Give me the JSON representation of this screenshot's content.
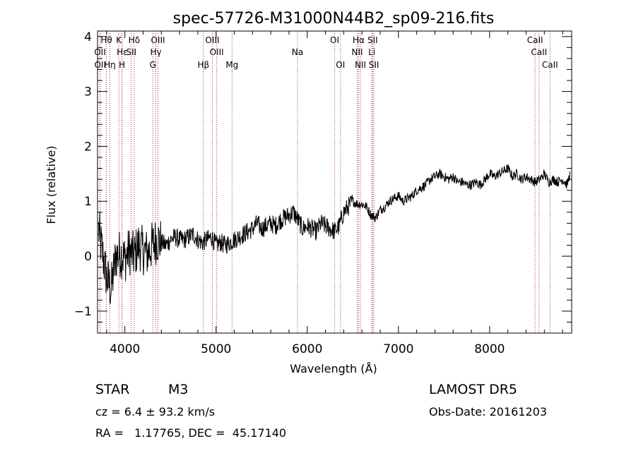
{
  "chart_data": {
    "type": "line",
    "title": "spec-57726-M31000N44B2_sp09-216.fits",
    "xlabel": "Wavelength (Å)",
    "ylabel": "Flux (relative)",
    "xlim": [
      3700,
      8900
    ],
    "ylim": [
      -1.4,
      4.1
    ],
    "x_ticks": [
      4000,
      5000,
      6000,
      7000,
      8000
    ],
    "y_ticks": [
      -1,
      0,
      1,
      2,
      3,
      4
    ],
    "grid": false,
    "series": [
      {
        "x": [
          3700,
          3750,
          3800,
          3850,
          3900,
          3950,
          4000,
          4050,
          4100,
          4150,
          4200,
          4250,
          4300,
          4350,
          4400,
          4450,
          4500,
          4550,
          4600,
          4650,
          4700,
          4750,
          4800,
          4850,
          4900,
          4950,
          5000,
          5050,
          5100,
          5150,
          5200,
          5250,
          5300,
          5350,
          5400,
          5450,
          5500,
          5550,
          5600,
          5650,
          5700,
          5750,
          5800,
          5850,
          5900,
          5950,
          6000,
          6050,
          6100,
          6150,
          6200,
          6250,
          6300,
          6350,
          6400,
          6450,
          6500,
          6550,
          6600,
          6650,
          6700,
          6750,
          6800,
          6850,
          6900,
          6950,
          7000,
          7050,
          7100,
          7150,
          7200,
          7250,
          7300,
          7350,
          7400,
          7450,
          7500,
          7550,
          7600,
          7650,
          7700,
          7750,
          7800,
          7850,
          7900,
          7950,
          8000,
          8050,
          8100,
          8150,
          8200,
          8250,
          8300,
          8350,
          8400,
          8450,
          8500,
          8550,
          8600,
          8650,
          8700,
          8750,
          8800,
          8850,
          8880
        ],
        "y": [
          0.6,
          0.1,
          -0.4,
          -0.6,
          0.0,
          0.05,
          -0.05,
          0.1,
          0.0,
          0.2,
          0.1,
          0.05,
          0.2,
          0.3,
          0.25,
          0.2,
          0.3,
          0.35,
          0.3,
          0.3,
          0.35,
          0.4,
          0.3,
          0.25,
          0.3,
          0.35,
          0.2,
          0.25,
          0.2,
          0.25,
          0.3,
          0.35,
          0.4,
          0.45,
          0.5,
          0.6,
          0.5,
          0.55,
          0.6,
          0.55,
          0.65,
          0.7,
          0.75,
          0.8,
          0.65,
          0.5,
          0.55,
          0.5,
          0.45,
          0.6,
          0.55,
          0.5,
          0.45,
          0.55,
          0.8,
          0.9,
          1.0,
          0.95,
          0.95,
          0.9,
          0.75,
          0.7,
          0.85,
          0.9,
          1.0,
          1.05,
          1.1,
          1.0,
          1.05,
          1.1,
          1.2,
          1.25,
          1.3,
          1.4,
          1.45,
          1.5,
          1.45,
          1.4,
          1.45,
          1.35,
          1.35,
          1.3,
          1.3,
          1.35,
          1.3,
          1.4,
          1.5,
          1.45,
          1.5,
          1.55,
          1.6,
          1.45,
          1.5,
          1.4,
          1.45,
          1.4,
          1.35,
          1.4,
          1.5,
          1.35,
          1.4,
          1.35,
          1.4,
          1.3,
          1.5
        ]
      }
    ],
    "spectral_lines": [
      {
        "label": "Hθ",
        "x": 3797,
        "row": 1
      },
      {
        "label": "K",
        "x": 3934,
        "row": 1
      },
      {
        "label": "Hδ",
        "x": 4102,
        "row": 1
      },
      {
        "label": "OIII",
        "x": 4363,
        "row": 1
      },
      {
        "label": "OIII",
        "x": 4959,
        "row": 1
      },
      {
        "label": "OI",
        "x": 6300,
        "row": 1
      },
      {
        "label": "Hα",
        "x": 6563,
        "row": 1
      },
      {
        "label": "SII",
        "x": 6717,
        "row": 1
      },
      {
        "label": "CaII",
        "x": 8498,
        "row": 1
      },
      {
        "label": "OII",
        "x": 3727,
        "row": 2
      },
      {
        "label": "Hε",
        "x": 3970,
        "row": 2
      },
      {
        "label": "SII",
        "x": 4070,
        "row": 2
      },
      {
        "label": "Hγ",
        "x": 4340,
        "row": 2
      },
      {
        "label": "OIII",
        "x": 5007,
        "row": 2
      },
      {
        "label": "Na",
        "x": 5893,
        "row": 2
      },
      {
        "label": "NII",
        "x": 6548,
        "row": 2
      },
      {
        "label": "Li",
        "x": 6708,
        "row": 2
      },
      {
        "label": "CaII",
        "x": 8542,
        "row": 2
      },
      {
        "label": "OII",
        "x": 3729,
        "row": 3
      },
      {
        "label": "Hη",
        "x": 3835,
        "row": 3
      },
      {
        "label": "H",
        "x": 3968,
        "row": 3
      },
      {
        "label": "G",
        "x": 4307,
        "row": 3
      },
      {
        "label": "Hβ",
        "x": 4861,
        "row": 3
      },
      {
        "label": "Mg",
        "x": 5175,
        "row": 3
      },
      {
        "label": "OI",
        "x": 6364,
        "row": 3
      },
      {
        "label": "NII",
        "x": 6583,
        "row": 3
      },
      {
        "label": "SII",
        "x": 6731,
        "row": 3
      },
      {
        "label": "CaII",
        "x": 8662,
        "row": 3
      }
    ]
  },
  "info": {
    "class": "STAR",
    "subclass": "M3",
    "survey": "LAMOST DR5",
    "cz": "cz = 6.4 ± 93.2 km/s",
    "obs_date": "Obs-Date: 20161203",
    "radec": "RA =   1.17765, DEC =  45.17140"
  }
}
